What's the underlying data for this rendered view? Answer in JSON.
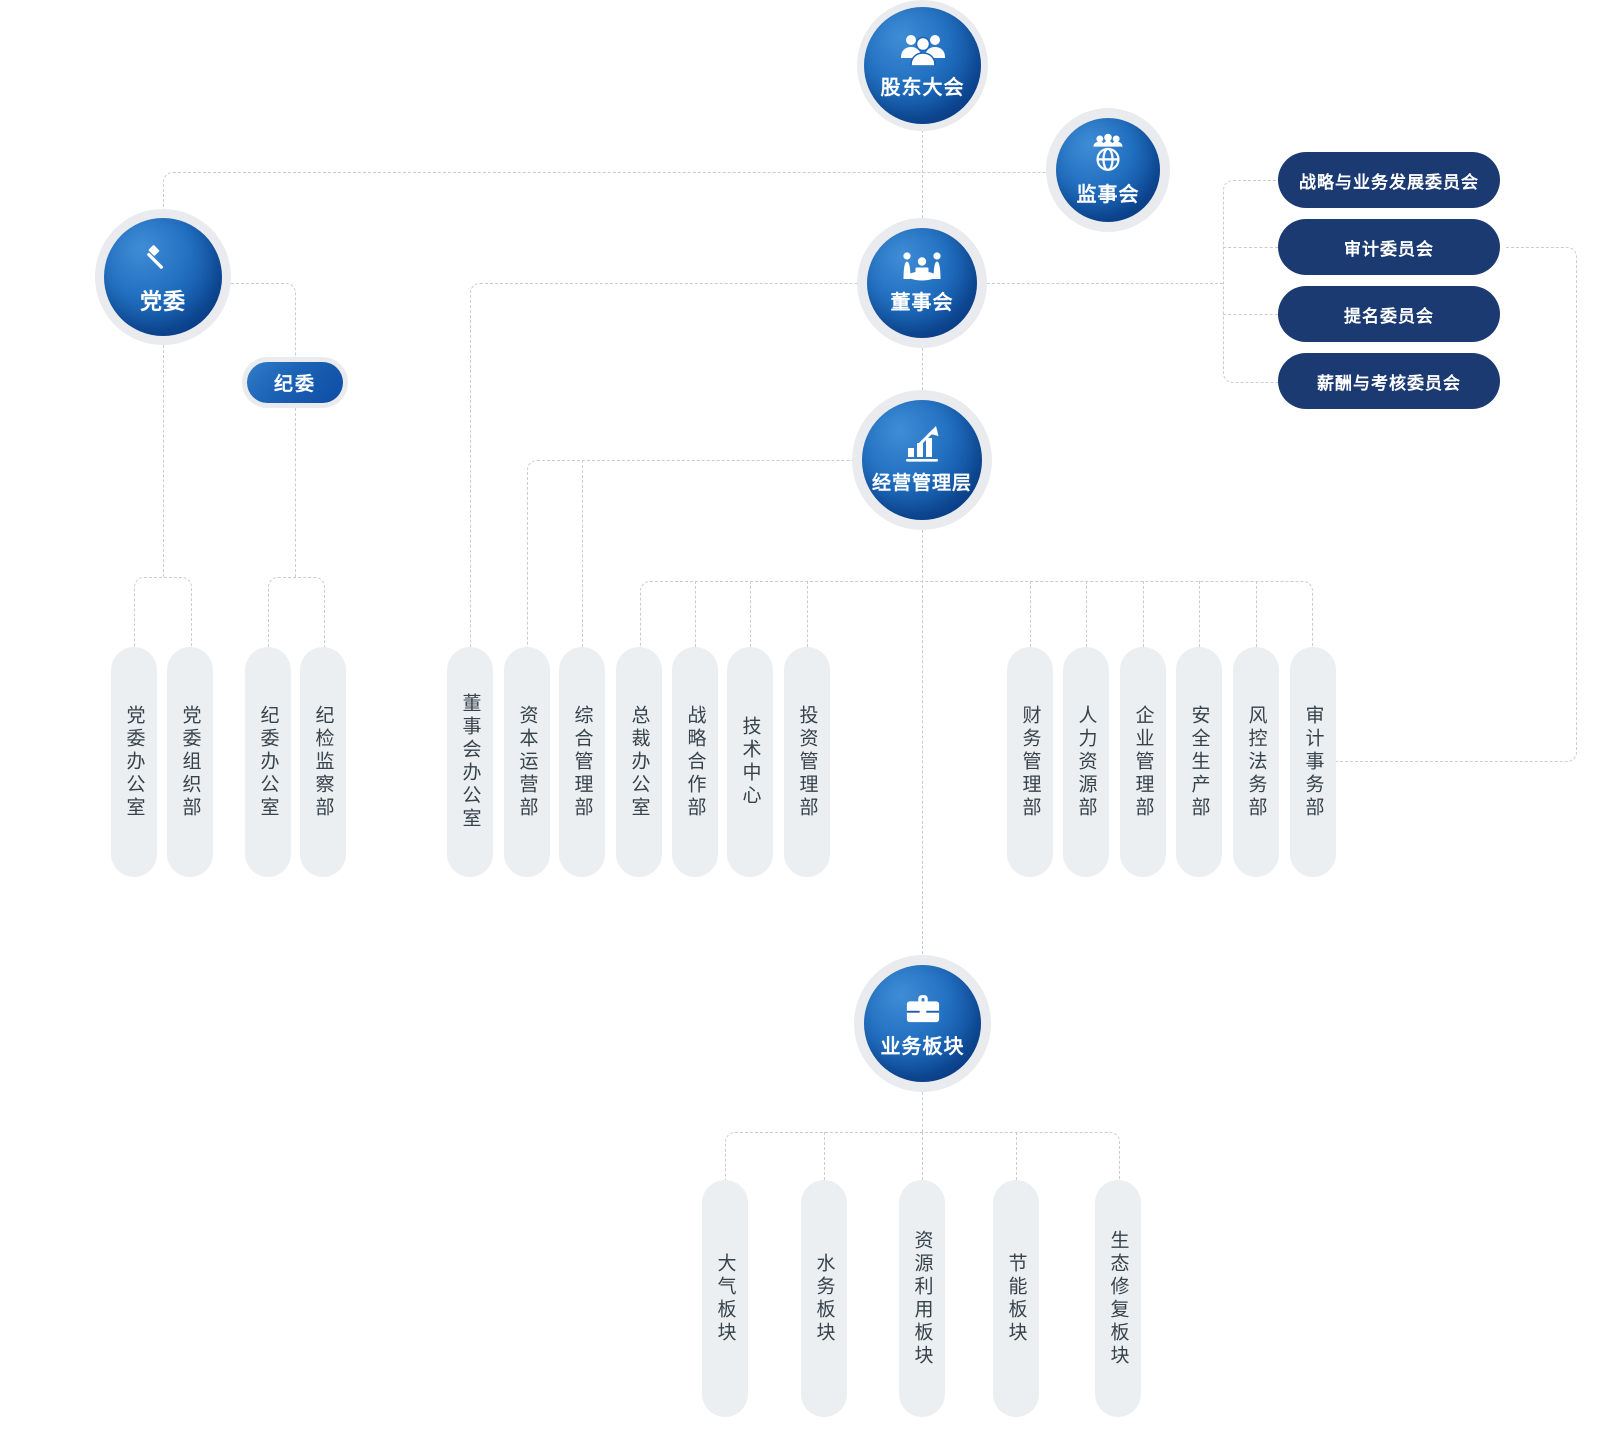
{
  "org": {
    "nodes": {
      "shareholders": {
        "label": "股东大会",
        "icon": "people-group-icon"
      },
      "supervisory": {
        "label": "监事会",
        "icon": "globe-people-icon"
      },
      "party": {
        "label": "党委",
        "icon": "party-emblem-icon"
      },
      "board": {
        "label": "董事会",
        "icon": "meeting-icon"
      },
      "management": {
        "label": "经营管理层",
        "icon": "chart-growth-icon"
      },
      "business": {
        "label": "业务板块",
        "icon": "briefcase-icon"
      },
      "discipline": {
        "label": "纪委"
      }
    },
    "committees": [
      "战略与业务发展委员会",
      "审计委员会",
      "提名委员会",
      "薪酬与考核委员会"
    ],
    "party_departments": [
      "党委办公室",
      "党委组织部",
      "纪委办公室",
      "纪检监察部"
    ],
    "middle_departments": [
      "董事会办公室",
      "资本运营部",
      "综合管理部",
      "总裁办公室",
      "战略合作部",
      "技术中心",
      "投资管理部"
    ],
    "right_departments": [
      "财务管理部",
      "人力资源部",
      "企业管理部",
      "安全生产部",
      "风控法务部",
      "审计事务部"
    ],
    "business_segments": [
      "大气板块",
      "水务板块",
      "资源利用板块",
      "节能板块",
      "生态修复板块"
    ],
    "colors": {
      "circle_blue_light": "#3f8cd6",
      "circle_blue_dark": "#0a3f93",
      "committee_navy": "#1b3a72",
      "pill_gray": "#eceff1",
      "pill_text": "#37434b",
      "dash_gray": "#c9cdd1",
      "halo_gray": "#e9ebee"
    }
  }
}
